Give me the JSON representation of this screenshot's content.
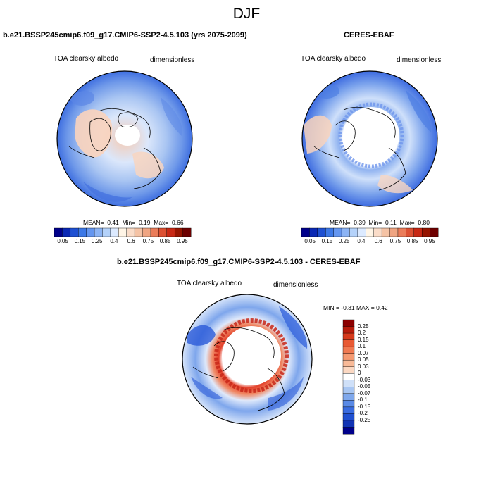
{
  "title": "DJF",
  "panels": [
    {
      "title": "b.e21.BSSP245cmip6.f09_g17.CMIP6-SSP2-4.5.103 (yrs 2075-2099)",
      "left_label": "TOA clearsky albedo",
      "right_label": "dimensionless",
      "stats": {
        "mean_label": "MEAN=",
        "mean": "0.41",
        "min_label": "Min=",
        "min": "0.19",
        "max_label": "Max=",
        "max": "0.66"
      }
    },
    {
      "title": "CERES-EBAF",
      "left_label": "TOA clearsky albedo",
      "right_label": "dimensionless",
      "stats": {
        "mean_label": "MEAN=",
        "mean": "0.39",
        "min_label": "Min=",
        "min": "0.11",
        "max_label": "Max=",
        "max": "0.80"
      }
    },
    {
      "title": "b.e21.BSSP245cmip6.f09_g17.CMIP6-SSP2-4.5.103 - CERES-EBAF",
      "left_label": "TOA clearsky albedo",
      "right_label": "dimensionless",
      "stats_text": "MIN = -0.31 MAX = 0.42"
    }
  ],
  "colorbar_abs": {
    "colors": [
      "#00008b",
      "#0a28b4",
      "#1e50d2",
      "#3c78e6",
      "#6496f0",
      "#8cb4f5",
      "#b4d2fa",
      "#dceaff",
      "#fff5e6",
      "#fadcc8",
      "#f5c3a5",
      "#f0a582",
      "#eb7d5a",
      "#dc5032",
      "#c82814",
      "#961400",
      "#6e0000"
    ],
    "labels": [
      "0.05",
      "0.15",
      "0.25",
      "0.4",
      "0.6",
      "0.75",
      "0.85",
      "0.95"
    ]
  },
  "colorbar_diff": {
    "colors": [
      "#8b0000",
      "#b71c0c",
      "#d63a1c",
      "#e85a34",
      "#f07a52",
      "#f59a72",
      "#f8ba98",
      "#fbd8c2",
      "#ffffff",
      "#cfe0f8",
      "#a8c6f2",
      "#7fa8ec",
      "#5a8ae6",
      "#3a6ce0",
      "#2050d0",
      "#1234b4",
      "#00008b"
    ],
    "labels": [
      "0.25",
      "0.2",
      "0.15",
      "0.1",
      "0.07",
      "0.05",
      "0.03",
      "0",
      "-0.03",
      "-0.05",
      "-0.07",
      "-0.1",
      "-0.15",
      "-0.2",
      "-0.25"
    ]
  }
}
